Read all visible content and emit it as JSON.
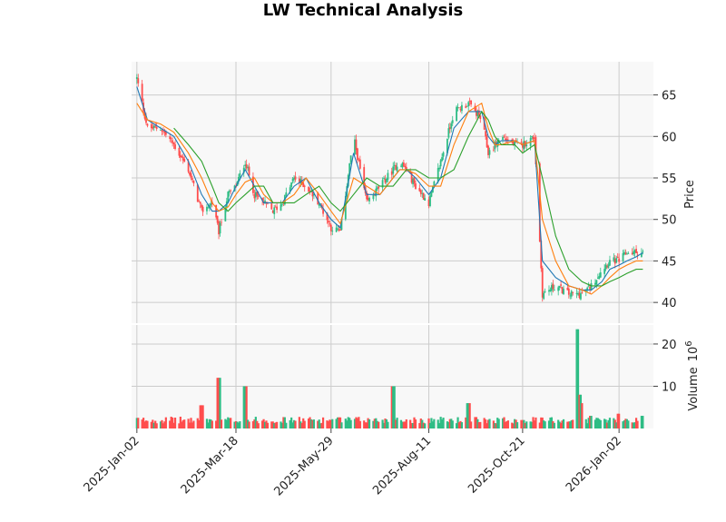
{
  "chart_data": {
    "type": "candlestick",
    "title": "LW Technical Analysis",
    "price_panel": {
      "ylabel": "Price",
      "ylim": [
        37.5,
        69
      ],
      "yticks": [
        40,
        45,
        50,
        55,
        60,
        65
      ]
    },
    "volume_panel": {
      "ylabel": "Volume",
      "ylabel_exponent": "10",
      "ylabel_exponent_power": "6",
      "ylim": [
        0,
        24.5
      ],
      "yticks": [
        10,
        20
      ]
    },
    "x_range": [
      "2024-12-29",
      "2026-01-28"
    ],
    "xtick_labels": [
      "2025-Jan-02",
      "2025-Mar-18",
      "2025-May-29",
      "2025-Aug-11",
      "2025-Oct-21",
      "2026-Jan-02"
    ],
    "grid": true,
    "colors": {
      "up": "#2ebd85",
      "down": "#ff4d4d",
      "ma_fast": "#1f77b4",
      "ma_mid": "#ff7f0e",
      "ma_slow": "#2ca02c",
      "panel_bg": "#f8f8f8",
      "grid": "#cccccc"
    },
    "close_series": {
      "name": "close",
      "dates": [
        "2025-01-02",
        "2025-01-10",
        "2025-01-20",
        "2025-01-30",
        "2025-02-10",
        "2025-02-20",
        "2025-02-28",
        "2025-03-05",
        "2025-03-12",
        "2025-03-18",
        "2025-03-25",
        "2025-04-01",
        "2025-04-08",
        "2025-04-15",
        "2025-04-22",
        "2025-05-01",
        "2025-05-10",
        "2025-05-20",
        "2025-05-29",
        "2025-06-05",
        "2025-06-15",
        "2025-06-25",
        "2025-07-05",
        "2025-07-15",
        "2025-07-20",
        "2025-07-25",
        "2025-08-01",
        "2025-08-11",
        "2025-08-20",
        "2025-08-30",
        "2025-09-10",
        "2025-09-20",
        "2025-09-25",
        "2025-09-30",
        "2025-10-05",
        "2025-10-15",
        "2025-10-21",
        "2025-10-30",
        "2025-11-05",
        "2025-11-15",
        "2025-11-25",
        "2025-12-05",
        "2025-12-12",
        "2025-12-20",
        "2025-12-26",
        "2026-01-02",
        "2026-01-08",
        "2026-01-15",
        "2026-01-20"
      ],
      "values": [
        67,
        61,
        61,
        59,
        56,
        51,
        52,
        48.5,
        53,
        54,
        57,
        53,
        52,
        51,
        52,
        55,
        54,
        52,
        49,
        48.5,
        60,
        52,
        54,
        56,
        57,
        56,
        54,
        52,
        57,
        63,
        64,
        62,
        58,
        59,
        60,
        59,
        59,
        60,
        41,
        42,
        41,
        41,
        42,
        44,
        45,
        45,
        46,
        46,
        46
      ]
    },
    "volume_series": {
      "name": "volume",
      "dates": [
        "2025-01-02",
        "2025-02-20",
        "2025-03-05",
        "2025-03-25",
        "2025-05-29",
        "2025-07-15",
        "2025-07-20",
        "2025-09-10",
        "2025-10-21",
        "2025-12-01",
        "2025-12-03",
        "2025-12-06",
        "2025-12-12",
        "2026-01-02",
        "2026-01-20"
      ],
      "values": [
        2.5,
        5.5,
        12,
        10,
        2,
        10,
        2,
        6,
        2,
        23.5,
        8,
        6,
        3,
        3.5,
        3
      ]
    },
    "moving_averages": [
      {
        "name": "ma_fast",
        "values": [
          66,
          62,
          61,
          60,
          57,
          53,
          51,
          51,
          52,
          54,
          56,
          54,
          52,
          52,
          52,
          54,
          55,
          52,
          50,
          49,
          58,
          53,
          53,
          55,
          56,
          56,
          55,
          53,
          55,
          61,
          63,
          63,
          60,
          59,
          59.5,
          59.5,
          59,
          59.5,
          45,
          43,
          42,
          41.5,
          41.5,
          42.5,
          44,
          44.5,
          45,
          45.5,
          46
        ]
      },
      {
        "name": "ma_mid",
        "values": [
          64,
          62,
          61.5,
          60.5,
          58,
          55,
          52,
          51,
          51.5,
          53,
          54.5,
          55,
          53,
          52,
          52,
          53,
          55,
          53,
          51,
          49.5,
          55,
          54,
          53,
          55,
          56,
          56,
          55.5,
          54,
          54,
          59,
          63,
          64,
          61,
          59,
          59,
          59.5,
          59,
          59.5,
          50,
          45,
          42,
          41.5,
          41,
          42,
          43,
          44,
          44.5,
          45,
          45
        ]
      },
      {
        "name": "ma_slow",
        "values": [
          null,
          null,
          null,
          61,
          59,
          57,
          54,
          52,
          51,
          52,
          53,
          54,
          54,
          52,
          52,
          52,
          53,
          54,
          52,
          51,
          53,
          55,
          54,
          54,
          55,
          56,
          56,
          55,
          55,
          56,
          60,
          63,
          62,
          60,
          59,
          59,
          58,
          59,
          55,
          48,
          44,
          42.5,
          42,
          42,
          42.5,
          43,
          43.5,
          44,
          44
        ]
      }
    ]
  }
}
